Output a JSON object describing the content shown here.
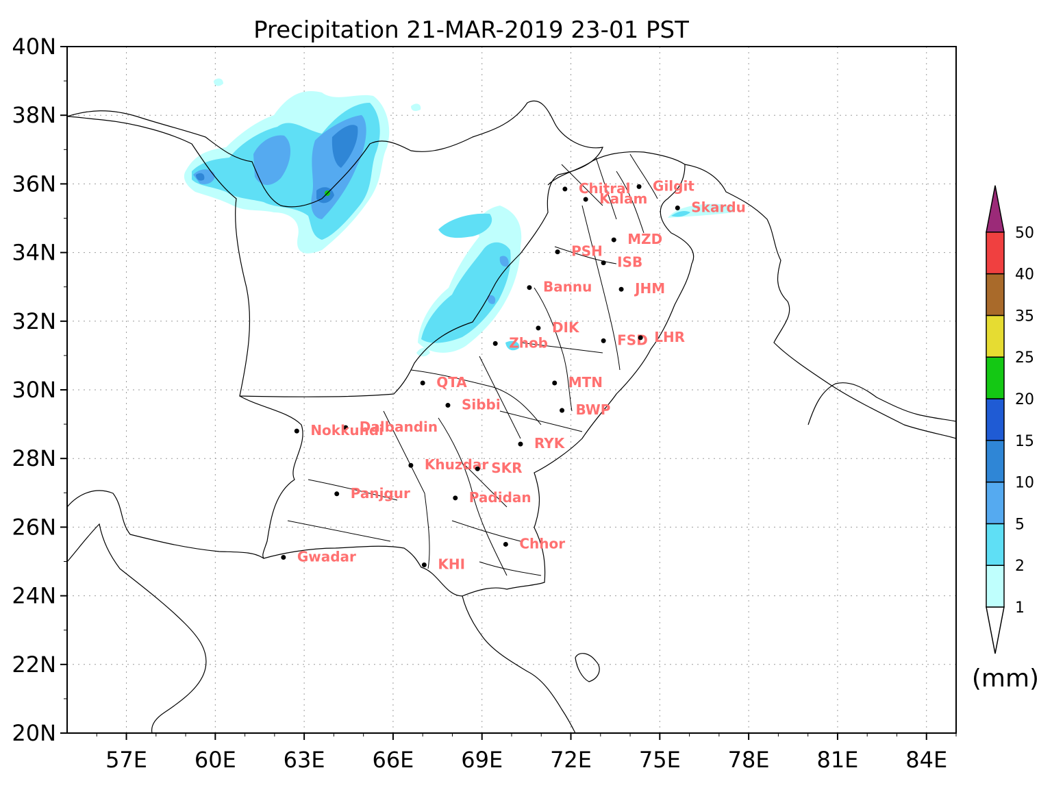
{
  "title": "Precipitation 21-MAR-2019 23-01 PST",
  "unit_label": "(mm)",
  "axes": {
    "lat_ticks": [
      "40N",
      "38N",
      "36N",
      "34N",
      "32N",
      "30N",
      "28N",
      "26N",
      "24N",
      "22N",
      "20N"
    ],
    "lon_ticks": [
      "57E",
      "60E",
      "63E",
      "66E",
      "69E",
      "72E",
      "75E",
      "78E",
      "81E",
      "84E"
    ]
  },
  "legend": {
    "levels": [
      "1",
      "2",
      "5",
      "10",
      "15",
      "20",
      "25",
      "35",
      "40",
      "50"
    ],
    "colors": [
      "#bffffd",
      "#5fdff5",
      "#55aaf0",
      "#2f86d6",
      "#1f5bd4",
      "#14c814",
      "#e6dc32",
      "#a96a2a",
      "#f04040",
      "#9b2a78"
    ]
  },
  "cities": [
    {
      "name": "Chitral",
      "lon": 71.8,
      "lat": 35.85
    },
    {
      "name": "Gilgit",
      "lon": 74.3,
      "lat": 35.92
    },
    {
      "name": "Kalam",
      "lon": 72.5,
      "lat": 35.55
    },
    {
      "name": "Skardu",
      "lon": 75.6,
      "lat": 35.3
    },
    {
      "name": "MZD",
      "lon": 73.45,
      "lat": 34.37
    },
    {
      "name": "PSH",
      "lon": 71.55,
      "lat": 34.02
    },
    {
      "name": "ISB",
      "lon": 73.1,
      "lat": 33.7
    },
    {
      "name": "Bannu",
      "lon": 70.6,
      "lat": 32.98
    },
    {
      "name": "JHM",
      "lon": 73.7,
      "lat": 32.93
    },
    {
      "name": "DIK",
      "lon": 70.9,
      "lat": 31.8
    },
    {
      "name": "FSD",
      "lon": 73.1,
      "lat": 31.43
    },
    {
      "name": "LHR",
      "lon": 74.35,
      "lat": 31.52
    },
    {
      "name": "Zhob",
      "lon": 69.45,
      "lat": 31.35
    },
    {
      "name": "QTA",
      "lon": 67.0,
      "lat": 30.2
    },
    {
      "name": "MTN",
      "lon": 71.45,
      "lat": 30.2
    },
    {
      "name": "Sibbi",
      "lon": 67.85,
      "lat": 29.55
    },
    {
      "name": "BWP",
      "lon": 71.7,
      "lat": 29.4
    },
    {
      "name": "Dalbandin",
      "lon": 64.4,
      "lat": 28.9
    },
    {
      "name": "Nokkundi",
      "lon": 62.75,
      "lat": 28.8
    },
    {
      "name": "RYK",
      "lon": 70.3,
      "lat": 28.42
    },
    {
      "name": "Khuzdar",
      "lon": 66.6,
      "lat": 27.8
    },
    {
      "name": "SKR",
      "lon": 68.85,
      "lat": 27.7
    },
    {
      "name": "Panjgur",
      "lon": 64.1,
      "lat": 26.97
    },
    {
      "name": "Padidan",
      "lon": 68.1,
      "lat": 26.85
    },
    {
      "name": "Chhor",
      "lon": 69.8,
      "lat": 25.5
    },
    {
      "name": "Gwadar",
      "lon": 62.3,
      "lat": 25.12
    },
    {
      "name": "KHI",
      "lon": 67.05,
      "lat": 24.9
    }
  ]
}
